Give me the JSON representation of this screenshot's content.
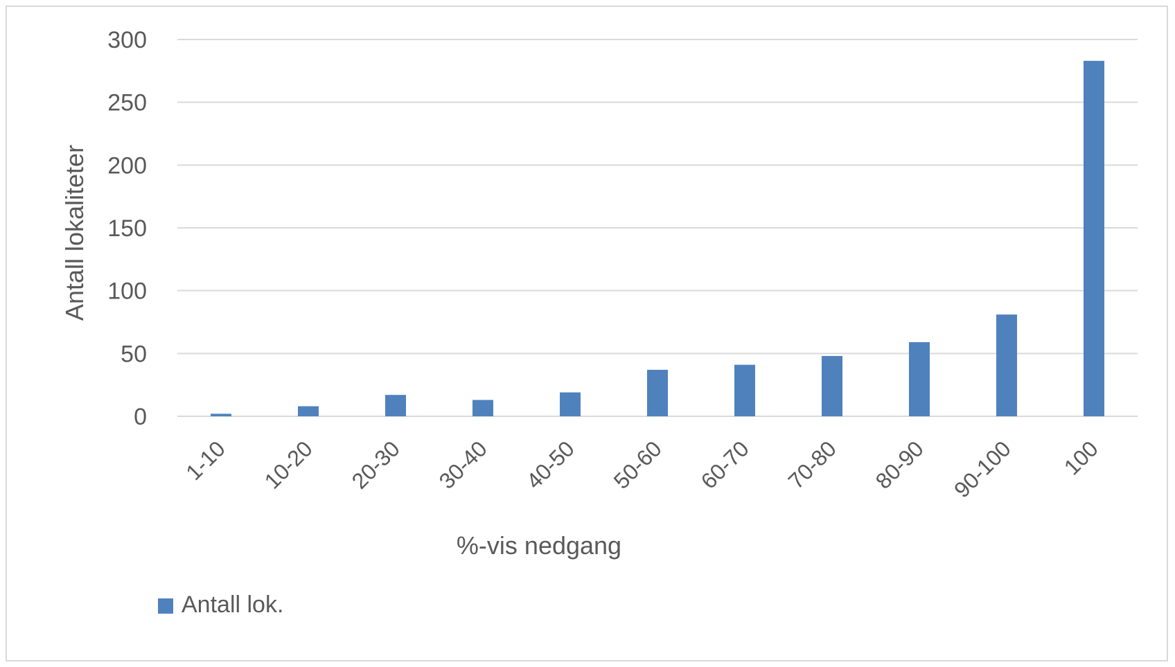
{
  "chart_data": {
    "type": "bar",
    "title": "",
    "xlabel": "%-vis nedgang",
    "ylabel": "Antall lokaliteter",
    "categories": [
      "1-10",
      "10-20",
      "20-30",
      "30-40",
      "40-50",
      "50-60",
      "60-70",
      "70-80",
      "80-90",
      "90-100",
      "100"
    ],
    "series": [
      {
        "name": "Antall lok.",
        "color": "#4f81bd",
        "values": [
          2,
          8,
          17,
          13,
          19,
          37,
          41,
          48,
          59,
          81,
          283
        ]
      }
    ],
    "ylim": [
      0,
      300
    ],
    "yticks": [
      "0",
      "50",
      "100",
      "150",
      "200",
      "250",
      "300"
    ],
    "grid": true,
    "legend_position": "bottom-left"
  }
}
